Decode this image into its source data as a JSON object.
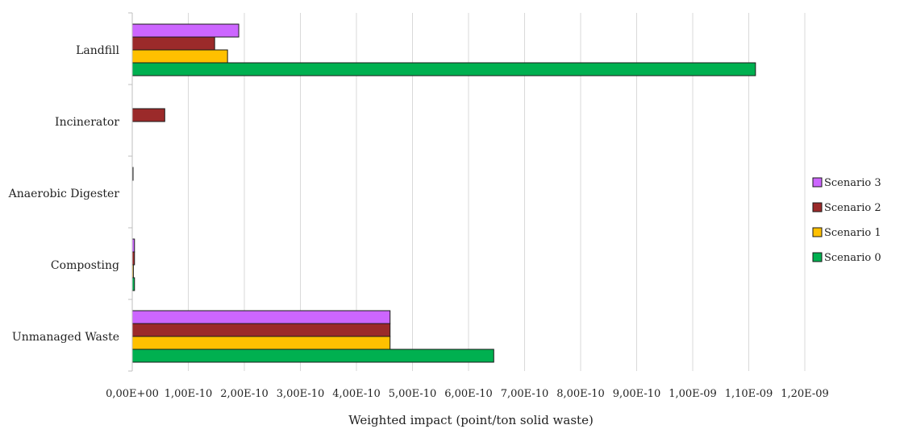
{
  "chart_data": {
    "type": "bar",
    "orientation": "horizontal",
    "categories": [
      "Landfill",
      "Incinerator",
      "Anaerobic Digester",
      "Composting",
      "Unmanaged Waste"
    ],
    "series": [
      {
        "name": "Scenario 3",
        "color": "#cc66ff",
        "values": [
          1.9e-10,
          0,
          1e-12,
          4e-12,
          4.6e-10
        ]
      },
      {
        "name": "Scenario 2",
        "color": "#9b2a2a",
        "values": [
          1.47e-10,
          5.8e-11,
          0,
          4e-12,
          4.6e-10
        ]
      },
      {
        "name": "Scenario 1",
        "color": "#ffc000",
        "values": [
          1.7e-10,
          0,
          0,
          2e-12,
          4.6e-10
        ]
      },
      {
        "name": "Scenario 0",
        "color": "#00b050",
        "values": [
          1.112e-09,
          0,
          0,
          4e-12,
          6.45e-10
        ]
      }
    ],
    "xlim": [
      0,
      1.2e-09
    ],
    "xticks": [
      "0,00E+00",
      "1,00E-10",
      "2,00E-10",
      "3,00E-10",
      "4,00E-10",
      "5,00E-10",
      "6,00E-10",
      "7,00E-10",
      "8,00E-10",
      "9,00E-10",
      "1,00E-09",
      "1,10E-09",
      "1,20E-09"
    ],
    "xlabel": "Weighted impact (point/ton solid waste)",
    "ylabel": "",
    "grid": true,
    "legend_position": "right",
    "legend_order": [
      "Scenario 3",
      "Scenario 2",
      "Scenario 1",
      "Scenario 0"
    ]
  }
}
